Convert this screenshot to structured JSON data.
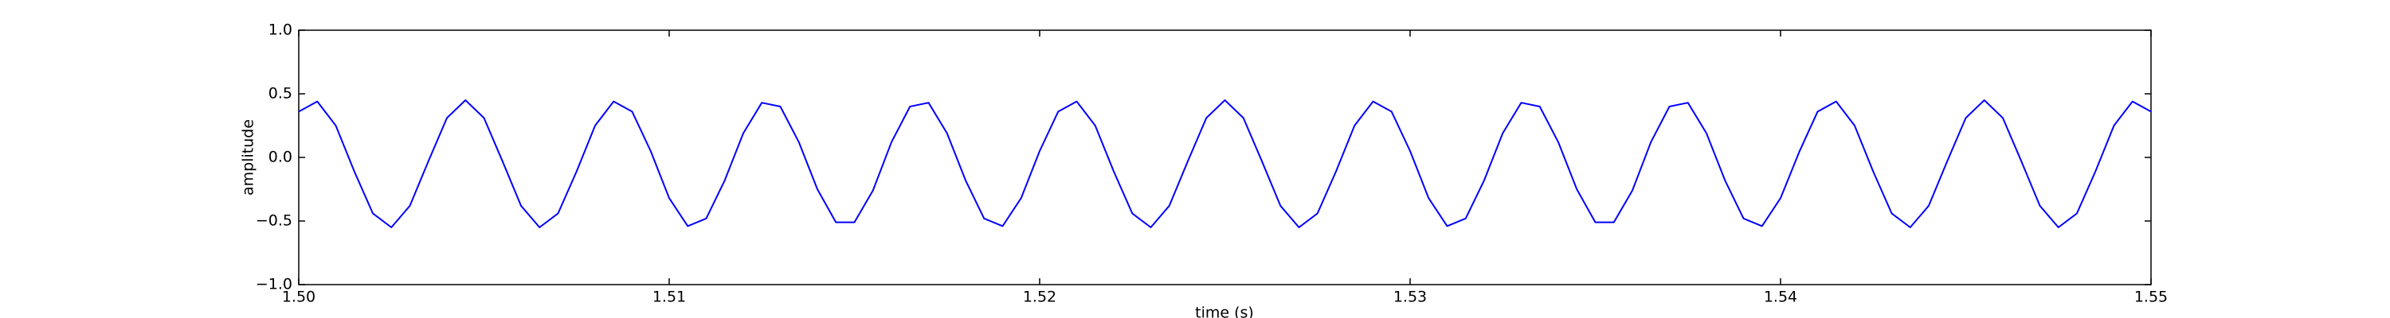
{
  "chart_data": {
    "type": "line",
    "x_label": "time (s)",
    "y_label": "amplitude",
    "x": [
      1.5,
      1.5005,
      1.501,
      1.5015,
      1.502,
      1.5025,
      1.503,
      1.5035,
      1.504,
      1.5045,
      1.505,
      1.5055,
      1.506,
      1.5065,
      1.507,
      1.5075,
      1.508,
      1.5085,
      1.509,
      1.5095,
      1.51,
      1.5105,
      1.511,
      1.5115,
      1.512,
      1.5125,
      1.513,
      1.5135,
      1.514,
      1.5145,
      1.515,
      1.5155,
      1.516,
      1.5165,
      1.517,
      1.5175,
      1.518,
      1.5185,
      1.519,
      1.5195,
      1.52,
      1.5205,
      1.521,
      1.5215,
      1.522,
      1.5225,
      1.523,
      1.5235,
      1.524,
      1.5245,
      1.525,
      1.5255,
      1.526,
      1.5265,
      1.527,
      1.5275,
      1.528,
      1.5285,
      1.529,
      1.5295,
      1.53,
      1.5305,
      1.531,
      1.5315,
      1.532,
      1.5325,
      1.533,
      1.5335,
      1.534,
      1.5345,
      1.535,
      1.5355,
      1.536,
      1.5365,
      1.537,
      1.5375,
      1.538,
      1.5385,
      1.539,
      1.5395,
      1.54,
      1.5405,
      1.541,
      1.5415,
      1.542,
      1.5425,
      1.543,
      1.5435,
      1.544,
      1.5445,
      1.545,
      1.5455,
      1.546,
      1.5465,
      1.547,
      1.5475,
      1.548,
      1.5485,
      1.549,
      1.5495,
      1.55
    ],
    "series": [
      {
        "color": "#0000ff",
        "values": [
          0.36,
          0.44,
          0.25,
          -0.11,
          -0.44,
          -0.55,
          -0.38,
          -0.03,
          0.31,
          0.45,
          0.31,
          -0.03,
          -0.38,
          -0.55,
          -0.44,
          -0.11,
          0.25,
          0.44,
          0.36,
          0.05,
          -0.32,
          -0.54,
          -0.48,
          -0.18,
          0.19,
          0.43,
          0.4,
          0.12,
          -0.25,
          -0.51,
          -0.51,
          -0.26,
          0.12,
          0.4,
          0.43,
          0.19,
          -0.18,
          -0.48,
          -0.54,
          -0.32,
          0.05,
          0.36,
          0.44,
          0.25,
          -0.11,
          -0.44,
          -0.55,
          -0.38,
          -0.03,
          0.31,
          0.45,
          0.31,
          -0.03,
          -0.38,
          -0.55,
          -0.44,
          -0.11,
          0.25,
          0.44,
          0.36,
          0.05,
          -0.32,
          -0.54,
          -0.48,
          -0.18,
          0.19,
          0.43,
          0.4,
          0.12,
          -0.25,
          -0.51,
          -0.51,
          -0.26,
          0.12,
          0.4,
          0.43,
          0.19,
          -0.18,
          -0.48,
          -0.54,
          -0.32,
          0.04,
          0.36,
          0.44,
          0.25,
          -0.11,
          -0.44,
          -0.55,
          -0.38,
          -0.03,
          0.31,
          0.45,
          0.31,
          -0.03,
          -0.38,
          -0.55,
          -0.44,
          -0.11,
          0.25,
          0.44,
          0.36
        ]
      }
    ],
    "xlim": [
      1.5,
      1.55
    ],
    "xticks": [
      {
        "value": 1.5,
        "label": "1.50"
      },
      1.51,
      1.52,
      1.53,
      1.54,
      1.55
    ],
    "ylim": [
      -1,
      1
    ],
    "yticks": [
      {
        "value": -1,
        "label": "−1.0"
      },
      {
        "value": -0.5,
        "label": "−0.5"
      },
      {
        "value": 0,
        "label": "0.0"
      },
      0.5,
      {
        "value": 1,
        "label": "1.0"
      }
    ]
  }
}
